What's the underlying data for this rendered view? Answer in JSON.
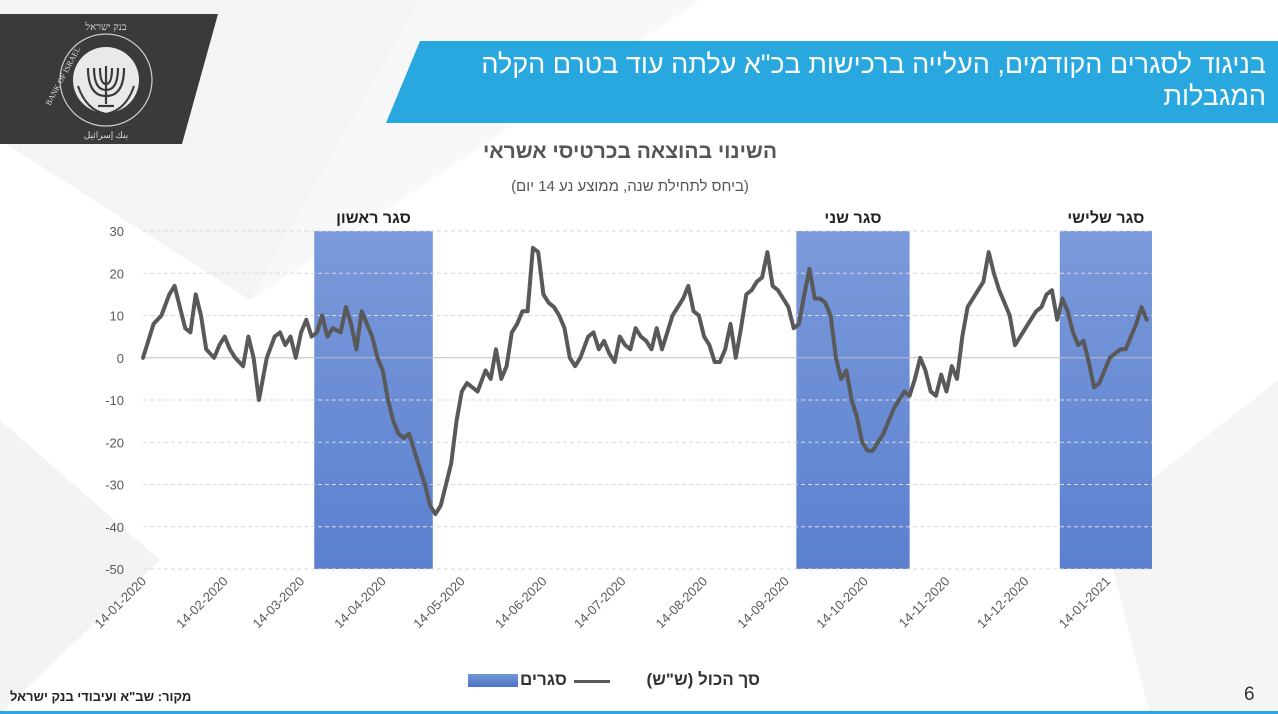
{
  "slide": {
    "title": "בניגוד לסגרים הקודמים, העלייה ברכישות בכ\"א עלתה עוד בטרם הקלה המגבלות",
    "source": "מקור: שב\"א ועיבודי בנק ישראל",
    "page_number": "6",
    "colors": {
      "banner": "#29a8e0",
      "logo_bg": "#3a3a3c",
      "lockdown_fill": "#5b80cf",
      "series_line": "#595959"
    }
  },
  "logo": {
    "text_en": "BANK OF ISRAEL",
    "text_he": "בנק ישראל",
    "text_ar": "بنك إسرائيل",
    "icon": "menorah-seal-icon"
  },
  "chart_data": {
    "type": "line",
    "title": "השינוי בהוצאה בכרטיסי אשראי",
    "subtitle": "(ביחס לתחילת שנה, ממוצע נע 14 יום)",
    "ylim": [
      -50,
      30
    ],
    "yticks": [
      "30",
      "20",
      "10",
      "0",
      "-10",
      "-20",
      "-30",
      "-40",
      "-50"
    ],
    "x_tick_labels": [
      "14-01-2020",
      "14-02-2020",
      "14-03-2020",
      "14-04-2020",
      "14-05-2020",
      "14-06-2020",
      "14-07-2020",
      "14-08-2020",
      "14-09-2020",
      "14-10-2020",
      "14-11-2020",
      "14-12-2020",
      "14-01-2021"
    ],
    "legend_position": "bottom",
    "legend": {
      "series_label": "סך הכול (ש\"ש)",
      "lockdown_label": "סגרים"
    },
    "lockdowns": [
      {
        "label": "סגר ראשון",
        "start": "2020-03-19",
        "end": "2020-05-03"
      },
      {
        "label": "סגר שני",
        "start": "2020-09-18",
        "end": "2020-10-31"
      },
      {
        "label": "סגר שלישי",
        "start": "2020-12-27",
        "end": "2021-01-31"
      }
    ],
    "series": [
      {
        "name": "סך הכול (ש\"ש)",
        "points": [
          [
            "2020-01-14",
            0
          ],
          [
            "2020-01-16",
            4
          ],
          [
            "2020-01-18",
            8
          ],
          [
            "2020-01-21",
            10
          ],
          [
            "2020-01-24",
            15
          ],
          [
            "2020-01-26",
            17
          ],
          [
            "2020-01-28",
            12
          ],
          [
            "2020-01-30",
            7
          ],
          [
            "2020-02-01",
            6
          ],
          [
            "2020-02-03",
            15
          ],
          [
            "2020-02-05",
            10
          ],
          [
            "2020-02-07",
            2
          ],
          [
            "2020-02-10",
            0
          ],
          [
            "2020-02-12",
            3
          ],
          [
            "2020-02-14",
            5
          ],
          [
            "2020-02-16",
            2
          ],
          [
            "2020-02-18",
            0
          ],
          [
            "2020-02-21",
            -2
          ],
          [
            "2020-02-23",
            5
          ],
          [
            "2020-02-25",
            0
          ],
          [
            "2020-02-27",
            -10
          ],
          [
            "2020-03-01",
            0
          ],
          [
            "2020-03-04",
            5
          ],
          [
            "2020-03-06",
            6
          ],
          [
            "2020-03-08",
            3
          ],
          [
            "2020-03-10",
            5
          ],
          [
            "2020-03-12",
            0
          ],
          [
            "2020-03-14",
            6
          ],
          [
            "2020-03-16",
            9
          ],
          [
            "2020-03-18",
            5
          ],
          [
            "2020-03-20",
            6
          ],
          [
            "2020-03-22",
            10
          ],
          [
            "2020-03-24",
            5
          ],
          [
            "2020-03-26",
            7
          ],
          [
            "2020-03-29",
            6
          ],
          [
            "2020-03-31",
            12
          ],
          [
            "2020-04-02",
            8
          ],
          [
            "2020-04-04",
            2
          ],
          [
            "2020-04-06",
            11
          ],
          [
            "2020-04-08",
            8
          ],
          [
            "2020-04-10",
            5
          ],
          [
            "2020-04-12",
            0
          ],
          [
            "2020-04-14",
            -3
          ],
          [
            "2020-04-16",
            -10
          ],
          [
            "2020-04-18",
            -15
          ],
          [
            "2020-04-20",
            -18
          ],
          [
            "2020-04-22",
            -19
          ],
          [
            "2020-04-24",
            -18
          ],
          [
            "2020-04-26",
            -22
          ],
          [
            "2020-04-28",
            -26
          ],
          [
            "2020-04-30",
            -30
          ],
          [
            "2020-05-02",
            -35
          ],
          [
            "2020-05-04",
            -37
          ],
          [
            "2020-05-06",
            -35
          ],
          [
            "2020-05-08",
            -30
          ],
          [
            "2020-05-10",
            -25
          ],
          [
            "2020-05-12",
            -15
          ],
          [
            "2020-05-14",
            -8
          ],
          [
            "2020-05-16",
            -6
          ],
          [
            "2020-05-18",
            -7
          ],
          [
            "2020-05-20",
            -8
          ],
          [
            "2020-05-23",
            -3
          ],
          [
            "2020-05-25",
            -5
          ],
          [
            "2020-05-27",
            2
          ],
          [
            "2020-05-29",
            -5
          ],
          [
            "2020-05-31",
            -2
          ],
          [
            "2020-06-02",
            6
          ],
          [
            "2020-06-04",
            8
          ],
          [
            "2020-06-06",
            11
          ],
          [
            "2020-06-08",
            11
          ],
          [
            "2020-06-10",
            26
          ],
          [
            "2020-06-12",
            25
          ],
          [
            "2020-06-14",
            15
          ],
          [
            "2020-06-16",
            13
          ],
          [
            "2020-06-18",
            12
          ],
          [
            "2020-06-20",
            10
          ],
          [
            "2020-06-22",
            7
          ],
          [
            "2020-06-24",
            0
          ],
          [
            "2020-06-26",
            -2
          ],
          [
            "2020-06-28",
            0
          ],
          [
            "2020-07-01",
            5
          ],
          [
            "2020-07-03",
            6
          ],
          [
            "2020-07-05",
            2
          ],
          [
            "2020-07-07",
            4
          ],
          [
            "2020-07-09",
            1
          ],
          [
            "2020-07-11",
            -1
          ],
          [
            "2020-07-13",
            5
          ],
          [
            "2020-07-15",
            3
          ],
          [
            "2020-07-17",
            2
          ],
          [
            "2020-07-19",
            7
          ],
          [
            "2020-07-21",
            5
          ],
          [
            "2020-07-23",
            4
          ],
          [
            "2020-07-25",
            2
          ],
          [
            "2020-07-27",
            7
          ],
          [
            "2020-07-29",
            2
          ],
          [
            "2020-07-31",
            6
          ],
          [
            "2020-08-02",
            10
          ],
          [
            "2020-08-04",
            12
          ],
          [
            "2020-08-06",
            14
          ],
          [
            "2020-08-08",
            17
          ],
          [
            "2020-08-10",
            11
          ],
          [
            "2020-08-12",
            10
          ],
          [
            "2020-08-14",
            5
          ],
          [
            "2020-08-16",
            3
          ],
          [
            "2020-08-18",
            -1
          ],
          [
            "2020-08-20",
            -1
          ],
          [
            "2020-08-22",
            2
          ],
          [
            "2020-08-24",
            8
          ],
          [
            "2020-08-26",
            0
          ],
          [
            "2020-08-28",
            7
          ],
          [
            "2020-08-30",
            15
          ],
          [
            "2020-09-01",
            16
          ],
          [
            "2020-09-03",
            18
          ],
          [
            "2020-09-05",
            19
          ],
          [
            "2020-09-07",
            25
          ],
          [
            "2020-09-09",
            17
          ],
          [
            "2020-09-11",
            16
          ],
          [
            "2020-09-13",
            14
          ],
          [
            "2020-09-15",
            12
          ],
          [
            "2020-09-17",
            7
          ],
          [
            "2020-09-19",
            8
          ],
          [
            "2020-09-21",
            15
          ],
          [
            "2020-09-23",
            21
          ],
          [
            "2020-09-25",
            14
          ],
          [
            "2020-09-27",
            14
          ],
          [
            "2020-09-29",
            13
          ],
          [
            "2020-10-01",
            10
          ],
          [
            "2020-10-03",
            0
          ],
          [
            "2020-10-05",
            -5
          ],
          [
            "2020-10-07",
            -3
          ],
          [
            "2020-10-09",
            -10
          ],
          [
            "2020-10-11",
            -14
          ],
          [
            "2020-10-13",
            -20
          ],
          [
            "2020-10-15",
            -22
          ],
          [
            "2020-10-17",
            -22
          ],
          [
            "2020-10-19",
            -20
          ],
          [
            "2020-10-21",
            -18
          ],
          [
            "2020-10-23",
            -15
          ],
          [
            "2020-10-25",
            -12
          ],
          [
            "2020-10-27",
            -10
          ],
          [
            "2020-10-29",
            -8
          ],
          [
            "2020-10-31",
            -9
          ],
          [
            "2020-11-02",
            -5
          ],
          [
            "2020-11-04",
            0
          ],
          [
            "2020-11-06",
            -3
          ],
          [
            "2020-11-08",
            -8
          ],
          [
            "2020-11-10",
            -9
          ],
          [
            "2020-11-12",
            -4
          ],
          [
            "2020-11-14",
            -8
          ],
          [
            "2020-11-16",
            -2
          ],
          [
            "2020-11-18",
            -5
          ],
          [
            "2020-11-20",
            5
          ],
          [
            "2020-11-22",
            12
          ],
          [
            "2020-11-24",
            14
          ],
          [
            "2020-11-26",
            16
          ],
          [
            "2020-11-28",
            18
          ],
          [
            "2020-11-30",
            25
          ],
          [
            "2020-12-02",
            20
          ],
          [
            "2020-12-04",
            16
          ],
          [
            "2020-12-06",
            13
          ],
          [
            "2020-12-08",
            10
          ],
          [
            "2020-12-10",
            3
          ],
          [
            "2020-12-12",
            5
          ],
          [
            "2020-12-14",
            7
          ],
          [
            "2020-12-16",
            9
          ],
          [
            "2020-12-18",
            11
          ],
          [
            "2020-12-20",
            12
          ],
          [
            "2020-12-22",
            15
          ],
          [
            "2020-12-24",
            16
          ],
          [
            "2020-12-26",
            9
          ],
          [
            "2020-12-28",
            14
          ],
          [
            "2020-12-30",
            11
          ],
          [
            "2021-01-01",
            6
          ],
          [
            "2021-01-03",
            3
          ],
          [
            "2021-01-05",
            4
          ],
          [
            "2021-01-07",
            -1
          ],
          [
            "2021-01-09",
            -7
          ],
          [
            "2021-01-11",
            -6
          ],
          [
            "2021-01-13",
            -3
          ],
          [
            "2021-01-15",
            0
          ],
          [
            "2021-01-17",
            1
          ],
          [
            "2021-01-19",
            2
          ],
          [
            "2021-01-21",
            2
          ],
          [
            "2021-01-23",
            5
          ],
          [
            "2021-01-25",
            8
          ],
          [
            "2021-01-27",
            12
          ],
          [
            "2021-01-29",
            9
          ]
        ]
      }
    ]
  }
}
